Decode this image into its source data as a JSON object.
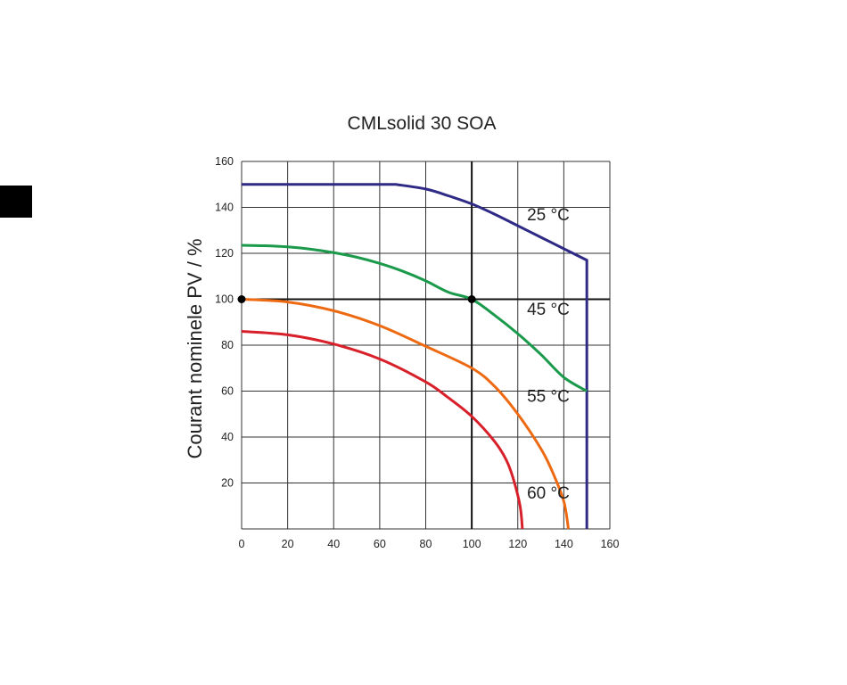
{
  "chart_data": {
    "type": "line",
    "title": "CMLsolid 30 SOA",
    "xlabel": "",
    "ylabel": "Courant nominele PV / %",
    "xlim": [
      0,
      160
    ],
    "ylim": [
      0,
      160
    ],
    "x_ticks": [
      "0",
      "20",
      "40",
      "60",
      "80",
      "100",
      "120",
      "140",
      "160"
    ],
    "y_ticks": [
      "20",
      "40",
      "60",
      "80",
      "100",
      "120",
      "140",
      "160"
    ],
    "grid": true,
    "colors": {
      "25": "#2e2a86",
      "45": "#1a9a4a",
      "55": "#ee6a12",
      "60": "#d8202a"
    },
    "series": [
      {
        "name": "25 °C",
        "key": "25",
        "x": [
          0,
          67,
          80,
          90,
          100,
          110,
          120,
          130,
          140,
          150,
          150
        ],
        "y": [
          150,
          150,
          148,
          145,
          141.5,
          137,
          132,
          127,
          122,
          117,
          0
        ]
      },
      {
        "name": "45 °C",
        "key": "45",
        "x": [
          0,
          10,
          20,
          30,
          40,
          50,
          60,
          70,
          80,
          90,
          100,
          110,
          120,
          130,
          140,
          150
        ],
        "y": [
          123.5,
          123.3,
          122.8,
          121.8,
          120.3,
          118.3,
          115.6,
          112.2,
          108,
          103,
          100,
          93,
          85,
          76,
          66,
          60
        ]
      },
      {
        "name": "55 °C",
        "key": "55",
        "x": [
          0,
          20,
          40,
          60,
          80,
          100,
          110,
          120,
          130,
          135,
          140,
          142
        ],
        "y": [
          100,
          98.8,
          95,
          88.5,
          79.5,
          70,
          62,
          50,
          35,
          25,
          12,
          0
        ]
      },
      {
        "name": "60 °C",
        "key": "60",
        "x": [
          0,
          20,
          40,
          60,
          80,
          90,
          100,
          110,
          115,
          118,
          121,
          122
        ],
        "y": [
          86,
          84.5,
          80.5,
          74,
          64,
          57,
          49,
          38,
          30,
          22,
          10,
          0
        ]
      }
    ],
    "reference_lines": {
      "x": 100,
      "y": 100
    },
    "markers": [
      {
        "x": 0,
        "y": 100
      },
      {
        "x": 100,
        "y": 100
      }
    ],
    "annotations": [
      {
        "text": "25 °C",
        "x": 124,
        "y": 137
      },
      {
        "text": "45 °C",
        "x": 124,
        "y": 96
      },
      {
        "text": "55 °C",
        "x": 124,
        "y": 58
      },
      {
        "text": "60 °C",
        "x": 124,
        "y": 16
      }
    ]
  }
}
